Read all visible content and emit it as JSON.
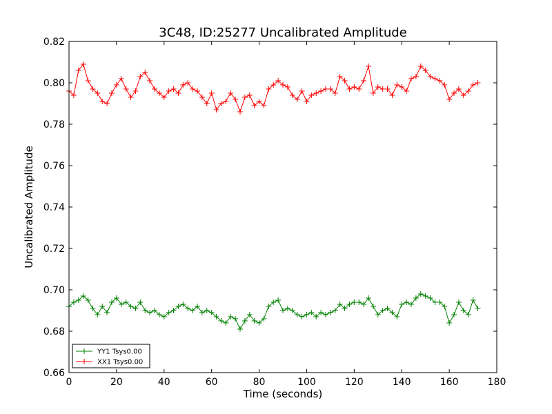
{
  "chart_data": {
    "type": "scatter",
    "title": "3C48, ID:25277 Uncalibrated Amplitude",
    "xlabel": "Time (seconds)",
    "ylabel": "Uncalibrated Amplitude",
    "xlim": [
      0,
      180
    ],
    "ylim": [
      0.66,
      0.82
    ],
    "x_ticks": [
      "0",
      "20",
      "40",
      "60",
      "80",
      "100",
      "120",
      "140",
      "160",
      "180"
    ],
    "y_ticks": [
      "0.66",
      "0.68",
      "0.70",
      "0.72",
      "0.74",
      "0.76",
      "0.78",
      "0.80",
      "0.82"
    ],
    "grid": false,
    "legend_position": "bottom-left",
    "marker": "+",
    "line": "connected",
    "series": [
      {
        "name": "YY1 Tsys0.00",
        "color": "#008000",
        "x": [
          0,
          2,
          4,
          6,
          8,
          10,
          12,
          14,
          16,
          18,
          20,
          22,
          24,
          26,
          28,
          30,
          32,
          34,
          36,
          38,
          40,
          42,
          44,
          46,
          48,
          50,
          52,
          54,
          56,
          58,
          60,
          62,
          64,
          66,
          68,
          70,
          72,
          74,
          76,
          78,
          80,
          82,
          84,
          86,
          88,
          90,
          92,
          94,
          96,
          98,
          100,
          102,
          104,
          106,
          108,
          110,
          112,
          114,
          116,
          118,
          120,
          122,
          124,
          126,
          128,
          130,
          132,
          134,
          136,
          138,
          140,
          142,
          144,
          146,
          148,
          150,
          152,
          154,
          156,
          158,
          160,
          162,
          164,
          166,
          168,
          170,
          172
        ],
        "y": [
          0.692,
          0.694,
          0.695,
          0.697,
          0.695,
          0.691,
          0.688,
          0.692,
          0.689,
          0.694,
          0.696,
          0.693,
          0.694,
          0.692,
          0.691,
          0.694,
          0.69,
          0.689,
          0.69,
          0.688,
          0.687,
          0.689,
          0.69,
          0.692,
          0.693,
          0.691,
          0.69,
          0.692,
          0.689,
          0.69,
          0.689,
          0.687,
          0.685,
          0.684,
          0.687,
          0.686,
          0.681,
          0.685,
          0.688,
          0.685,
          0.684,
          0.686,
          0.692,
          0.694,
          0.695,
          0.69,
          0.691,
          0.69,
          0.688,
          0.687,
          0.688,
          0.689,
          0.687,
          0.689,
          0.688,
          0.689,
          0.69,
          0.693,
          0.691,
          0.693,
          0.694,
          0.694,
          0.693,
          0.696,
          0.692,
          0.688,
          0.69,
          0.691,
          0.689,
          0.687,
          0.693,
          0.694,
          0.693,
          0.696,
          0.698,
          0.697,
          0.696,
          0.694,
          0.694,
          0.692,
          0.684,
          0.688,
          0.694,
          0.69,
          0.688,
          0.695,
          0.691
        ]
      },
      {
        "name": "XX1 Tsys0.00",
        "color": "#ff0000",
        "x": [
          0,
          2,
          4,
          6,
          8,
          10,
          12,
          14,
          16,
          18,
          20,
          22,
          24,
          26,
          28,
          30,
          32,
          34,
          36,
          38,
          40,
          42,
          44,
          46,
          48,
          50,
          52,
          54,
          56,
          58,
          60,
          62,
          64,
          66,
          68,
          70,
          72,
          74,
          76,
          78,
          80,
          82,
          84,
          86,
          88,
          90,
          92,
          94,
          96,
          98,
          100,
          102,
          104,
          106,
          108,
          110,
          112,
          114,
          116,
          118,
          120,
          122,
          124,
          126,
          128,
          130,
          132,
          134,
          136,
          138,
          140,
          142,
          144,
          146,
          148,
          150,
          152,
          154,
          156,
          158,
          160,
          162,
          164,
          166,
          168,
          170,
          172
        ],
        "y": [
          0.796,
          0.794,
          0.806,
          0.809,
          0.801,
          0.797,
          0.795,
          0.791,
          0.79,
          0.795,
          0.799,
          0.802,
          0.797,
          0.793,
          0.796,
          0.803,
          0.805,
          0.801,
          0.797,
          0.795,
          0.793,
          0.796,
          0.797,
          0.795,
          0.799,
          0.8,
          0.797,
          0.796,
          0.793,
          0.79,
          0.795,
          0.787,
          0.79,
          0.791,
          0.795,
          0.792,
          0.786,
          0.793,
          0.794,
          0.789,
          0.791,
          0.789,
          0.797,
          0.799,
          0.801,
          0.799,
          0.798,
          0.794,
          0.792,
          0.796,
          0.791,
          0.794,
          0.795,
          0.796,
          0.797,
          0.797,
          0.795,
          0.803,
          0.801,
          0.797,
          0.798,
          0.797,
          0.801,
          0.808,
          0.795,
          0.798,
          0.797,
          0.797,
          0.794,
          0.799,
          0.798,
          0.796,
          0.802,
          0.803,
          0.808,
          0.806,
          0.803,
          0.802,
          0.801,
          0.799,
          0.792,
          0.795,
          0.797,
          0.794,
          0.796,
          0.799,
          0.8
        ]
      }
    ]
  }
}
